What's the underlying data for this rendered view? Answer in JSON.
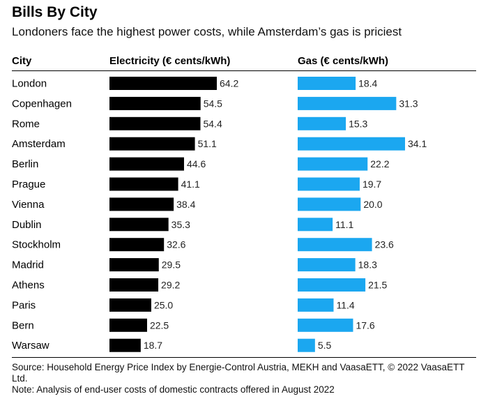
{
  "title": "Bills By City",
  "subtitle": "Londoners face the highest power costs, while Amsterdam’s gas is priciest",
  "headers": {
    "city": "City",
    "electricity": "Electricity (€ cents/kWh)",
    "gas": "Gas (€ cents/kWh)"
  },
  "colors": {
    "electricity": "#000000",
    "gas": "#1ba7f0"
  },
  "footer": {
    "source": "Source: Household Energy Price Index by Energie-Control Austria, MEKH and VaasaETT, © 2022 VaasaETT Ltd.",
    "note": "Note: Analysis of end-user costs of domestic contracts offered in August 2022"
  },
  "chart_data": {
    "type": "bar",
    "orientation": "horizontal",
    "categories": [
      "London",
      "Copenhagen",
      "Rome",
      "Amsterdam",
      "Berlin",
      "Prague",
      "Vienna",
      "Dublin",
      "Stockholm",
      "Madrid",
      "Athens",
      "Paris",
      "Bern",
      "Warsaw"
    ],
    "series": [
      {
        "name": "Electricity (€ cents/kWh)",
        "values": [
          64.2,
          54.5,
          54.4,
          51.1,
          44.6,
          41.1,
          38.4,
          35.3,
          32.6,
          29.5,
          29.2,
          25.0,
          22.5,
          18.7
        ]
      },
      {
        "name": "Gas (€ cents/kWh)",
        "values": [
          18.4,
          31.3,
          15.3,
          34.1,
          22.2,
          19.7,
          20.0,
          11.1,
          23.6,
          18.3,
          21.5,
          11.4,
          17.6,
          5.5
        ]
      }
    ]
  }
}
